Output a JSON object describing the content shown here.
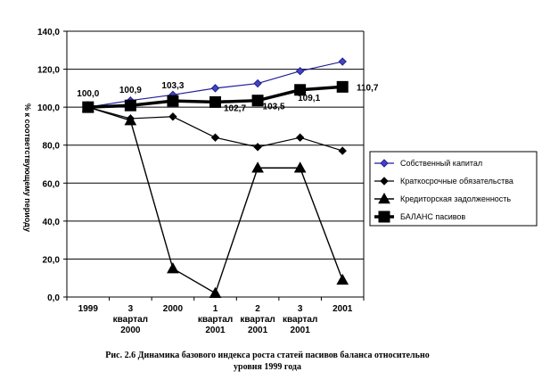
{
  "chart_data": {
    "type": "line",
    "title": "",
    "ylabel": "% к соответствующему периоду",
    "ylim": [
      0,
      140
    ],
    "yticks": [
      "0,0",
      "20,0",
      "40,0",
      "60,0",
      "80,0",
      "100,0",
      "120,0",
      "140,0"
    ],
    "ytick_values": [
      0,
      20,
      40,
      60,
      80,
      100,
      120,
      140
    ],
    "categories": [
      [
        "1999"
      ],
      [
        "3",
        "квартал",
        "2000"
      ],
      [
        "2000"
      ],
      [
        "1",
        "квартал",
        "2001"
      ],
      [
        "2",
        "квартал",
        "2001"
      ],
      [
        "3",
        "квартал",
        "2001"
      ],
      [
        "2001"
      ]
    ],
    "grid": true,
    "legend_position": "right",
    "series": [
      {
        "name": "Собственный капитал",
        "values": [
          100,
          103.5,
          106.5,
          110,
          112.5,
          119,
          124
        ],
        "marker": "diamond",
        "color": "#1f1f9a",
        "fill": "#4444bb",
        "width": 1.2
      },
      {
        "name": "Краткосрочные обязательства",
        "values": [
          100,
          94,
          95,
          84,
          79,
          84,
          77
        ],
        "marker": "diamond",
        "color": "#000000",
        "fill": "#000000",
        "width": 1.2
      },
      {
        "name": "Кредиторская задолженность",
        "values": [
          100,
          93,
          15,
          2,
          68,
          68,
          9
        ],
        "marker": "triangle",
        "color": "#000000",
        "fill": "#000000",
        "width": 1.4
      },
      {
        "name": "БАЛАНС пасивов",
        "values": [
          100,
          100.9,
          103.3,
          102.7,
          103.5,
          109.1,
          110.7
        ],
        "marker": "square",
        "color": "#000000",
        "fill": "#000000",
        "width": 3.5
      }
    ],
    "data_labels": [
      "100,0",
      "100,9",
      "103,3",
      "102,7",
      "103,5",
      "109,1",
      "110,7"
    ]
  },
  "caption": {
    "line1": "Рис. 2.6 Динамика базового индекса роста статей пасивов баланса относительно",
    "line2": "уровня 1999 года"
  }
}
